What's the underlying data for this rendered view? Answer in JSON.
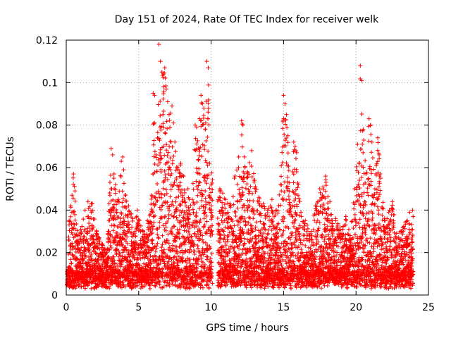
{
  "chart_data": {
    "type": "scatter",
    "title": "Day 151 of 2024, Rate Of TEC Index for receiver welk",
    "xlabel": "GPS time / hours",
    "ylabel": "ROTI / TECUs",
    "xlim": [
      0,
      25
    ],
    "ylim": [
      0,
      0.12
    ],
    "x_ticks": [
      "0",
      "5",
      "10",
      "15",
      "20",
      "25"
    ],
    "y_ticks": [
      "0",
      "0.02",
      "0.04",
      "0.06",
      "0.08",
      "0.1",
      "0.12"
    ],
    "grid": true,
    "marker": "+",
    "series": [
      {
        "name": "ROTI",
        "color": "#ff0000",
        "points": [
          [
            0.1,
            0.012
          ],
          [
            0.2,
            0.035
          ],
          [
            0.3,
            0.042
          ],
          [
            0.4,
            0.047
          ],
          [
            0.5,
            0.057
          ],
          [
            0.6,
            0.049
          ],
          [
            0.8,
            0.028
          ],
          [
            1.0,
            0.031
          ],
          [
            1.3,
            0.04
          ],
          [
            1.5,
            0.044
          ],
          [
            1.8,
            0.043
          ],
          [
            2.1,
            0.03
          ],
          [
            2.5,
            0.024
          ],
          [
            2.8,
            0.02
          ],
          [
            3.1,
            0.069
          ],
          [
            3.2,
            0.066
          ],
          [
            3.3,
            0.057
          ],
          [
            3.4,
            0.052
          ],
          [
            3.6,
            0.045
          ],
          [
            3.8,
            0.063
          ],
          [
            3.9,
            0.065
          ],
          [
            4.1,
            0.047
          ],
          [
            4.3,
            0.042
          ],
          [
            4.6,
            0.036
          ],
          [
            4.9,
            0.04
          ],
          [
            5.3,
            0.03
          ],
          [
            5.6,
            0.035
          ],
          [
            5.9,
            0.047
          ],
          [
            6.0,
            0.095
          ],
          [
            6.1,
            0.094
          ],
          [
            6.2,
            0.066
          ],
          [
            6.3,
            0.074
          ],
          [
            6.4,
            0.118
          ],
          [
            6.5,
            0.11
          ],
          [
            6.6,
            0.105
          ],
          [
            6.7,
            0.104
          ],
          [
            6.8,
            0.107
          ],
          [
            6.9,
            0.097
          ],
          [
            7.0,
            0.091
          ],
          [
            7.1,
            0.085
          ],
          [
            7.3,
            0.089
          ],
          [
            7.4,
            0.081
          ],
          [
            7.5,
            0.072
          ],
          [
            7.7,
            0.06
          ],
          [
            7.9,
            0.062
          ],
          [
            8.1,
            0.056
          ],
          [
            8.4,
            0.05
          ],
          [
            8.7,
            0.045
          ],
          [
            8.9,
            0.08
          ],
          [
            9.0,
            0.079
          ],
          [
            9.2,
            0.083
          ],
          [
            9.3,
            0.094
          ],
          [
            9.4,
            0.09
          ],
          [
            9.5,
            0.088
          ],
          [
            9.6,
            0.078
          ],
          [
            9.7,
            0.11
          ],
          [
            9.8,
            0.107
          ],
          [
            9.9,
            0.062
          ],
          [
            10.6,
            0.05
          ],
          [
            10.8,
            0.048
          ],
          [
            11.0,
            0.045
          ],
          [
            11.3,
            0.043
          ],
          [
            11.6,
            0.055
          ],
          [
            11.9,
            0.065
          ],
          [
            12.1,
            0.082
          ],
          [
            12.2,
            0.08
          ],
          [
            12.3,
            0.065
          ],
          [
            12.5,
            0.058
          ],
          [
            12.8,
            0.068
          ],
          [
            13.0,
            0.054
          ],
          [
            13.3,
            0.046
          ],
          [
            13.6,
            0.043
          ],
          [
            13.9,
            0.04
          ],
          [
            14.2,
            0.045
          ],
          [
            14.5,
            0.04
          ],
          [
            14.8,
            0.052
          ],
          [
            15.0,
            0.094
          ],
          [
            15.1,
            0.09
          ],
          [
            15.2,
            0.085
          ],
          [
            15.3,
            0.075
          ],
          [
            15.5,
            0.041
          ],
          [
            15.7,
            0.072
          ],
          [
            15.8,
            0.07
          ],
          [
            15.9,
            0.067
          ],
          [
            16.2,
            0.039
          ],
          [
            16.5,
            0.035
          ],
          [
            16.9,
            0.03
          ],
          [
            17.2,
            0.042
          ],
          [
            17.5,
            0.05
          ],
          [
            17.9,
            0.056
          ],
          [
            18.2,
            0.044
          ],
          [
            18.6,
            0.036
          ],
          [
            18.9,
            0.032
          ],
          [
            19.3,
            0.037
          ],
          [
            19.6,
            0.028
          ],
          [
            19.9,
            0.05
          ],
          [
            20.1,
            0.071
          ],
          [
            20.2,
            0.062
          ],
          [
            20.3,
            0.108
          ],
          [
            20.4,
            0.101
          ],
          [
            20.5,
            0.078
          ],
          [
            20.7,
            0.057
          ],
          [
            20.9,
            0.083
          ],
          [
            21.0,
            0.08
          ],
          [
            21.1,
            0.072
          ],
          [
            21.3,
            0.05
          ],
          [
            21.5,
            0.074
          ],
          [
            21.6,
            0.066
          ],
          [
            21.7,
            0.055
          ],
          [
            22.0,
            0.035
          ],
          [
            22.3,
            0.04
          ],
          [
            22.5,
            0.044
          ],
          [
            22.8,
            0.029
          ],
          [
            23.1,
            0.03
          ],
          [
            23.4,
            0.034
          ],
          [
            23.7,
            0.039
          ],
          [
            23.9,
            0.04
          ]
        ]
      }
    ]
  }
}
